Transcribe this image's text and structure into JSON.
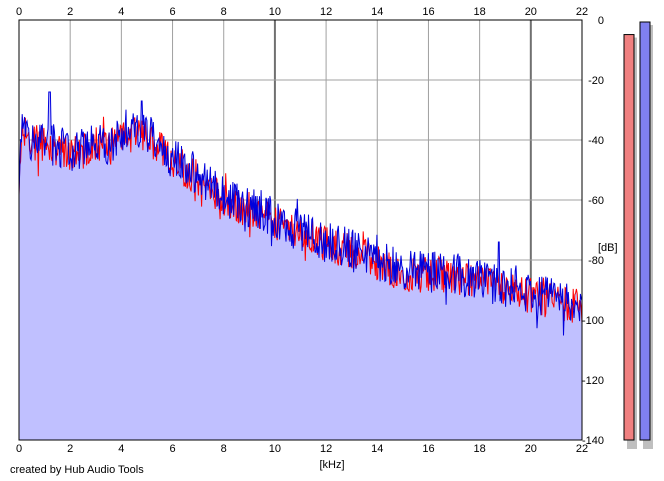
{
  "app": {
    "credit": "created by Hub Audio Tools"
  },
  "chart_data": {
    "type": "area",
    "xlabel": "[kHz]",
    "ylabel": "[dB]",
    "xlim": [
      0,
      22
    ],
    "ylim": [
      -140,
      0
    ],
    "x_ticks": [
      0,
      2,
      4,
      6,
      8,
      10,
      12,
      14,
      16,
      18,
      20,
      22
    ],
    "y_ticks": [
      0,
      -20,
      -40,
      -60,
      -80,
      -100,
      -120,
      -140
    ],
    "grid": true,
    "colors": {
      "fill": "#c0c0ff",
      "left_line": "#ff0000",
      "right_line": "#0000dd",
      "grid": "#a0a0a0",
      "grid_major": "#707070"
    },
    "envelope": {
      "x": [
        0,
        0.1,
        0.3,
        0.5,
        1,
        1.5,
        2,
        2.5,
        3,
        3.5,
        4,
        4.5,
        5,
        5.5,
        6,
        6.5,
        7,
        7.5,
        8,
        8.5,
        9,
        9.5,
        10,
        10.5,
        11,
        11.5,
        12,
        12.5,
        13,
        13.5,
        14,
        14.5,
        15,
        15.5,
        16,
        16.5,
        17,
        17.5,
        18,
        18.5,
        19,
        19.5,
        20,
        20.5,
        21,
        21.5,
        22
      ],
      "y": [
        -60,
        -35,
        -38,
        -40,
        -40,
        -42,
        -44,
        -43,
        -40,
        -41,
        -38,
        -37,
        -38,
        -41,
        -46,
        -49,
        -52,
        -55,
        -59,
        -61,
        -62,
        -63,
        -67,
        -69,
        -70,
        -72,
        -74,
        -75,
        -76,
        -77,
        -80,
        -82,
        -84,
        -84,
        -84,
        -84,
        -85,
        -86,
        -87,
        -88,
        -89,
        -90,
        -91,
        -92,
        -93,
        -94,
        -95
      ]
    },
    "peaks": [
      {
        "x": 1.2,
        "y": -24
      },
      {
        "x": 4.8,
        "y": -27
      },
      {
        "x": 18.75,
        "y": -74
      }
    ],
    "series": [
      {
        "channel": "left",
        "color": "#ff0000",
        "level_db": -11
      },
      {
        "channel": "right",
        "color": "#0000dd",
        "level_db": -7
      }
    ],
    "meters": {
      "range_db": [
        -140,
        0
      ],
      "left_level_db": -11,
      "right_level_db": -7,
      "left_color": "#f08080",
      "right_color": "#8080f0"
    }
  }
}
